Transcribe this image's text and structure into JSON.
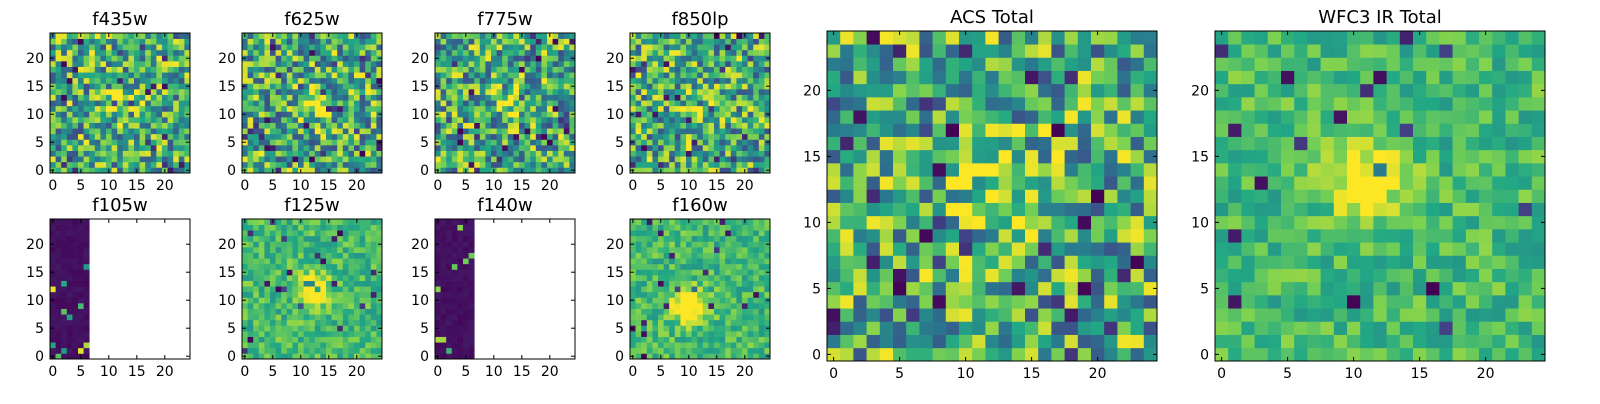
{
  "figure": {
    "colormap": "viridis",
    "colormap_stops": [
      "#440154",
      "#414487",
      "#2a788e",
      "#22a884",
      "#7ad151",
      "#fde725"
    ],
    "masked_color": "#ffffff"
  },
  "chart_data": [
    {
      "type": "heatmap",
      "title": "f435w",
      "xlabel": "",
      "ylabel": "",
      "xlim": [
        -0.5,
        24.5
      ],
      "ylim": [
        -0.5,
        24.5
      ],
      "xticks": [
        "0",
        "5",
        "10",
        "15",
        "20"
      ],
      "yticks": [
        "0",
        "5",
        "10",
        "15",
        "20"
      ],
      "grid_size": 25,
      "texture": "noise",
      "blob": [
        12,
        12,
        0.25
      ],
      "masked_columns_from": null
    },
    {
      "type": "heatmap",
      "title": "f625w",
      "xlabel": "",
      "ylabel": "",
      "xlim": [
        -0.5,
        24.5
      ],
      "ylim": [
        -0.5,
        24.5
      ],
      "xticks": [
        "0",
        "5",
        "10",
        "15",
        "20"
      ],
      "yticks": [
        "0",
        "5",
        "10",
        "15",
        "20"
      ],
      "grid_size": 25,
      "texture": "noise",
      "blob": [
        12,
        12,
        0.35
      ],
      "masked_columns_from": null
    },
    {
      "type": "heatmap",
      "title": "f775w",
      "xlabel": "",
      "ylabel": "",
      "xlim": [
        -0.5,
        24.5
      ],
      "ylim": [
        -0.5,
        24.5
      ],
      "xticks": [
        "0",
        "5",
        "10",
        "15",
        "20"
      ],
      "yticks": [
        "0",
        "5",
        "10",
        "15",
        "20"
      ],
      "grid_size": 25,
      "texture": "noise",
      "blob": [
        13,
        13,
        0.4
      ],
      "masked_columns_from": null
    },
    {
      "type": "heatmap",
      "title": "f850lp",
      "xlabel": "",
      "ylabel": "",
      "xlim": [
        -0.5,
        24.5
      ],
      "ylim": [
        -0.5,
        24.5
      ],
      "xticks": [
        "0",
        "5",
        "10",
        "15",
        "20"
      ],
      "yticks": [
        "0",
        "5",
        "10",
        "15",
        "20"
      ],
      "grid_size": 25,
      "texture": "noise",
      "blob": [
        12,
        12,
        0.3
      ],
      "masked_columns_from": null
    },
    {
      "type": "heatmap",
      "title": "f105w",
      "xlabel": "",
      "ylabel": "",
      "xlim": [
        -0.5,
        24.5
      ],
      "ylim": [
        -0.5,
        24.5
      ],
      "xticks": [
        "0",
        "5",
        "10",
        "15",
        "20"
      ],
      "yticks": [
        "0",
        "5",
        "10",
        "15",
        "20"
      ],
      "grid_size": 25,
      "texture": "edge",
      "blob": null,
      "masked_columns_from": 7
    },
    {
      "type": "heatmap",
      "title": "f125w",
      "xlabel": "",
      "ylabel": "",
      "xlim": [
        -0.5,
        24.5
      ],
      "ylim": [
        -0.5,
        24.5
      ],
      "xticks": [
        "0",
        "5",
        "10",
        "15",
        "20"
      ],
      "yticks": [
        "0",
        "5",
        "10",
        "15",
        "20"
      ],
      "grid_size": 25,
      "texture": "smooth",
      "blob": [
        12,
        12,
        0.5
      ],
      "masked_columns_from": null
    },
    {
      "type": "heatmap",
      "title": "f140w",
      "xlabel": "",
      "ylabel": "",
      "xlim": [
        -0.5,
        24.5
      ],
      "ylim": [
        -0.5,
        24.5
      ],
      "xticks": [
        "0",
        "5",
        "10",
        "15",
        "20"
      ],
      "yticks": [
        "0",
        "5",
        "10",
        "15",
        "20"
      ],
      "grid_size": 25,
      "texture": "edge",
      "blob": null,
      "masked_columns_from": 7
    },
    {
      "type": "heatmap",
      "title": "f160w",
      "xlabel": "",
      "ylabel": "",
      "xlim": [
        -0.5,
        24.5
      ],
      "ylim": [
        -0.5,
        24.5
      ],
      "xticks": [
        "0",
        "5",
        "10",
        "15",
        "20"
      ],
      "yticks": [
        "0",
        "5",
        "10",
        "15",
        "20"
      ],
      "grid_size": 25,
      "texture": "smooth",
      "blob": [
        10,
        9,
        0.55
      ],
      "masked_columns_from": null
    },
    {
      "type": "heatmap",
      "title": "ACS Total",
      "xlabel": "",
      "ylabel": "",
      "xlim": [
        -0.5,
        24.5
      ],
      "ylim": [
        -0.5,
        24.5
      ],
      "xticks": [
        "0",
        "5",
        "10",
        "15",
        "20"
      ],
      "yticks": [
        "0",
        "5",
        "10",
        "15",
        "20"
      ],
      "grid_size": 25,
      "texture": "noise",
      "blob": [
        13,
        13,
        0.4
      ],
      "masked_columns_from": null
    },
    {
      "type": "heatmap",
      "title": "WFC3 IR Total",
      "xlabel": "",
      "ylabel": "",
      "xlim": [
        -0.5,
        24.5
      ],
      "ylim": [
        -0.5,
        24.5
      ],
      "xticks": [
        "0",
        "5",
        "10",
        "15",
        "20"
      ],
      "yticks": [
        "0",
        "5",
        "10",
        "15",
        "20"
      ],
      "grid_size": 25,
      "texture": "smooth",
      "blob": [
        11,
        13,
        0.45
      ],
      "masked_columns_from": null
    }
  ]
}
